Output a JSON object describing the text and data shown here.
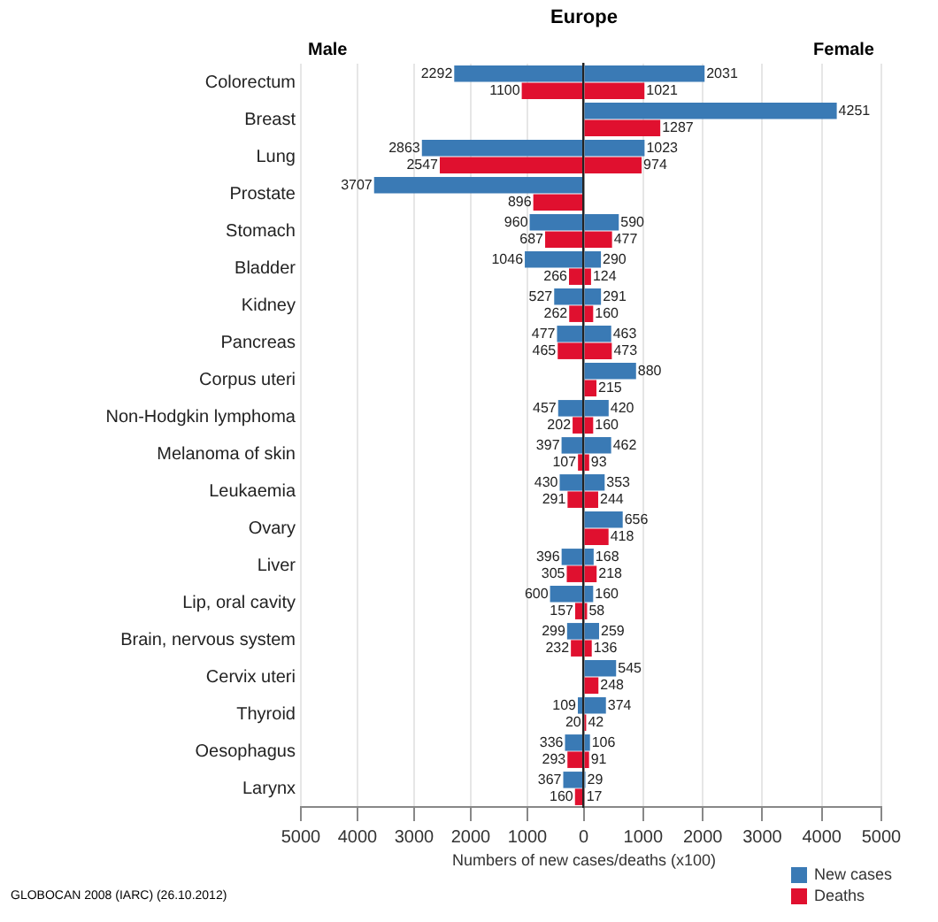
{
  "chart_data": [
    {
      "type": "bar",
      "orientation": "horizontal",
      "title": "Europe",
      "xlabel": "Numbers of new cases/deaths (x100)",
      "annotations": [
        "Male",
        "GLOBOCAN 2008 (IARC) (26.10.2012)"
      ],
      "categories": [
        "Colorectum",
        "Breast",
        "Lung",
        "Prostate",
        "Stomach",
        "Bladder",
        "Kidney",
        "Pancreas",
        "Corpus uteri",
        "Non-Hodgkin lymphoma",
        "Melanoma of skin",
        "Leukaemia",
        "Ovary",
        "Liver",
        "Lip, oral cavity",
        "Brain, nervous system",
        "Cervix uteri",
        "Thyroid",
        "Oesophagus",
        "Larynx"
      ],
      "series": [
        {
          "color": "#3a7ab5",
          "values": [
            2292,
            null,
            2863,
            3707,
            960,
            1046,
            527,
            477,
            null,
            457,
            397,
            430,
            null,
            396,
            600,
            299,
            null,
            109,
            336,
            367
          ]
        },
        {
          "color": "#e0102f",
          "values": [
            1100,
            null,
            2547,
            896,
            687,
            266,
            262,
            465,
            null,
            202,
            107,
            291,
            null,
            305,
            157,
            232,
            null,
            20,
            293,
            160
          ]
        }
      ],
      "data_labels": true,
      "xlim": [
        5000,
        0
      ],
      "xticks": [
        5000,
        4000,
        3000,
        2000,
        1000,
        {
          "value": 0,
          "label": null
        }
      ],
      "grid": "x"
    },
    {
      "type": "bar",
      "orientation": "horizontal",
      "annotations": [
        "Female"
      ],
      "categories": [
        null,
        null,
        null,
        null,
        null,
        null,
        null,
        null,
        null,
        null,
        null,
        null,
        null,
        null,
        null,
        null,
        null,
        null,
        null,
        null
      ],
      "series": [
        {
          "name": "New cases",
          "color": "#3a7ab5",
          "values": [
            2031,
            4251,
            1023,
            null,
            590,
            290,
            291,
            463,
            880,
            420,
            462,
            353,
            656,
            168,
            160,
            259,
            545,
            374,
            106,
            29
          ]
        },
        {
          "name": "Deaths",
          "color": "#e0102f",
          "values": [
            1021,
            1287,
            974,
            null,
            477,
            124,
            160,
            473,
            215,
            160,
            93,
            244,
            418,
            218,
            58,
            136,
            248,
            42,
            91,
            17
          ]
        }
      ],
      "data_labels": true,
      "xlim": [
        0,
        5000
      ],
      "xticks": [
        0,
        1000,
        2000,
        3000,
        4000,
        5000
      ],
      "grid": "x",
      "tick_labels": "x",
      "legend": "bottom right"
    }
  ]
}
